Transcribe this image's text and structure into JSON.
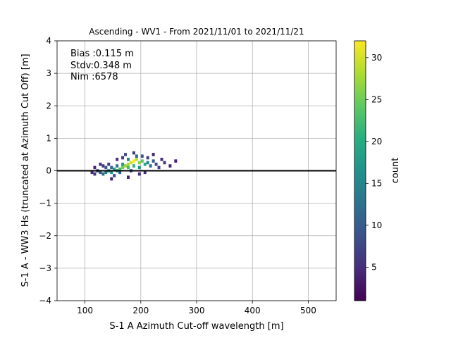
{
  "chart_data": {
    "type": "heatmap",
    "title": "Ascending - WV1 - From 2021/11/01 to 2021/11/21",
    "xlabel": "S-1 A Azimuth Cut-off wavelength [m]",
    "ylabel": "S-1 A - WW3 Hs (truncated at Azimuth Cut Off) [m]",
    "xlim": [
      50,
      550
    ],
    "ylim": [
      -4,
      4
    ],
    "x_ticks": [
      100,
      200,
      300,
      400,
      500
    ],
    "y_ticks": [
      -4,
      -3,
      -2,
      -1,
      0,
      1,
      2,
      3,
      4
    ],
    "grid": true,
    "reference_line_y": 0,
    "annotations": [
      "Bias :0.115 m",
      "Stdv:0.348 m",
      "Nim :6578"
    ],
    "colorbar": {
      "label": "count",
      "min": 1,
      "max": 32,
      "ticks": [
        5,
        10,
        15,
        20,
        25,
        30
      ],
      "colormap": "viridis"
    },
    "bins": {
      "x_width": 5,
      "y_height": 0.1,
      "cells": [
        [
          185,
          0.25,
          32
        ],
        [
          180,
          0.2,
          30
        ],
        [
          175,
          0.15,
          28
        ],
        [
          190,
          0.3,
          29
        ],
        [
          170,
          0.1,
          27
        ],
        [
          195,
          0.2,
          26
        ],
        [
          165,
          0.05,
          25
        ],
        [
          200,
          0.25,
          24
        ],
        [
          160,
          0.0,
          23
        ],
        [
          175,
          0.05,
          22
        ],
        [
          185,
          0.1,
          21
        ],
        [
          155,
          -0.05,
          20
        ],
        [
          205,
          0.15,
          19
        ],
        [
          150,
          0.0,
          18
        ],
        [
          165,
          0.15,
          18
        ],
        [
          145,
          -0.1,
          17
        ],
        [
          195,
          0.05,
          17
        ],
        [
          140,
          -0.05,
          16
        ],
        [
          210,
          0.2,
          15
        ],
        [
          135,
          -0.1,
          14
        ],
        [
          175,
          0.3,
          14
        ],
        [
          155,
          0.1,
          13
        ],
        [
          130,
          -0.15,
          12
        ],
        [
          215,
          0.1,
          12
        ],
        [
          190,
          0.4,
          11
        ],
        [
          145,
          0.05,
          11
        ],
        [
          125,
          -0.1,
          10
        ],
        [
          220,
          0.25,
          10
        ],
        [
          160,
          -0.1,
          10
        ],
        [
          180,
          -0.05,
          9
        ],
        [
          200,
          0.4,
          9
        ],
        [
          135,
          0.05,
          9
        ],
        [
          120,
          -0.05,
          8
        ],
        [
          225,
          0.15,
          8
        ],
        [
          170,
          0.45,
          8
        ],
        [
          150,
          -0.2,
          8
        ],
        [
          140,
          0.15,
          7
        ],
        [
          210,
          0.35,
          7
        ],
        [
          230,
          0.05,
          7
        ],
        [
          115,
          -0.15,
          6
        ],
        [
          165,
          0.35,
          6
        ],
        [
          185,
          0.5,
          6
        ],
        [
          240,
          0.2,
          6
        ],
        [
          130,
          0.1,
          6
        ],
        [
          195,
          -0.15,
          5
        ],
        [
          155,
          0.3,
          5
        ],
        [
          235,
          0.3,
          5
        ],
        [
          110,
          -0.1,
          5
        ],
        [
          125,
          0.15,
          5
        ],
        [
          205,
          -0.1,
          5
        ],
        [
          250,
          0.1,
          4
        ],
        [
          145,
          -0.3,
          4
        ],
        [
          220,
          0.45,
          4
        ],
        [
          175,
          -0.25,
          4
        ],
        [
          115,
          0.05,
          4
        ],
        [
          260,
          0.25,
          4
        ]
      ]
    }
  }
}
